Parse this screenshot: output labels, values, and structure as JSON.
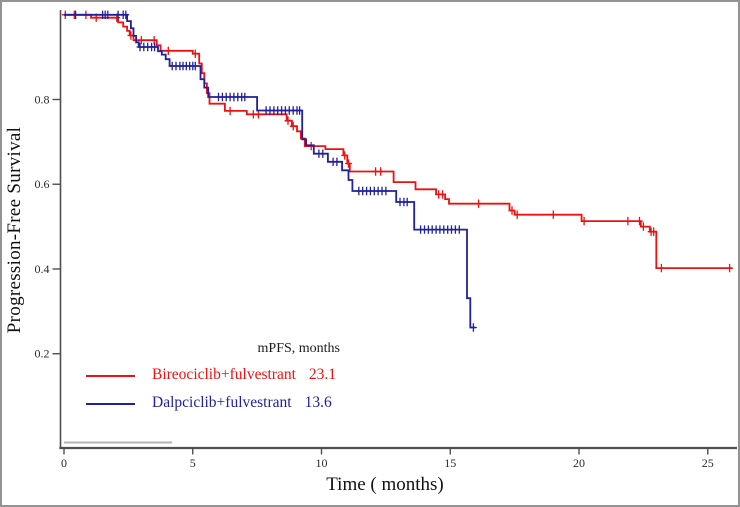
{
  "figure": {
    "background": "#ffffff",
    "frame_color": "#939393",
    "axis_color": "#4f4f4f",
    "tick_text_color": "#2a2a2a"
  },
  "chart_data": {
    "type": "line",
    "subtype": "kaplan-meier-step",
    "title": "",
    "xlabel": "Time ( months)",
    "ylabel": "Progression-Free Survival",
    "xlim": [
      0,
      26.2
    ],
    "ylim": [
      0,
      1.02
    ],
    "x_ticks": [
      0,
      5,
      10,
      15,
      20,
      25
    ],
    "x_tick_labels": [
      "0",
      "5",
      "10",
      "15",
      "20",
      "25"
    ],
    "y_ticks": [
      0.2,
      0.4,
      0.6,
      0.8
    ],
    "y_tick_labels": [
      "0.2",
      "0.4",
      "0.6",
      "0.8"
    ],
    "grid": false,
    "legend_position": "inside-lower-center",
    "baseline_artifact": {
      "x_range_months": [
        0,
        4.2
      ],
      "y_value": 0.012,
      "color": "#b4b4b4"
    },
    "series": [
      {
        "name": "Bireociclib+fulvestrant",
        "median_pfs_months": 23.1,
        "color": "#ED1111",
        "start": [
          0,
          1.0
        ],
        "steps": [
          [
            1.05,
            0.993
          ],
          [
            2.1,
            0.982
          ],
          [
            2.3,
            0.972
          ],
          [
            2.45,
            0.962
          ],
          [
            2.55,
            0.951
          ],
          [
            2.7,
            0.94
          ],
          [
            3.6,
            0.928
          ],
          [
            3.75,
            0.915
          ],
          [
            5.0,
            0.908
          ],
          [
            5.25,
            0.885
          ],
          [
            5.35,
            0.862
          ],
          [
            5.45,
            0.838
          ],
          [
            5.55,
            0.815
          ],
          [
            5.65,
            0.79
          ],
          [
            6.25,
            0.773
          ],
          [
            7.1,
            0.765
          ],
          [
            8.65,
            0.75
          ],
          [
            8.85,
            0.737
          ],
          [
            9.05,
            0.725
          ],
          [
            9.2,
            0.708
          ],
          [
            9.35,
            0.69
          ],
          [
            10.15,
            0.683
          ],
          [
            10.85,
            0.668
          ],
          [
            11.0,
            0.649
          ],
          [
            11.1,
            0.63
          ],
          [
            12.8,
            0.605
          ],
          [
            13.65,
            0.588
          ],
          [
            14.45,
            0.576
          ],
          [
            14.8,
            0.565
          ],
          [
            14.95,
            0.554
          ],
          [
            17.3,
            0.538
          ],
          [
            17.5,
            0.528
          ],
          [
            20.1,
            0.513
          ],
          [
            22.4,
            0.5
          ],
          [
            22.75,
            0.488
          ],
          [
            23.0,
            0.402
          ]
        ],
        "end_time": 25.95,
        "censor_times": [
          0.05,
          0.4,
          0.85,
          1.25,
          2.05,
          2.6,
          3.0,
          3.5,
          4.05,
          5.1,
          6.45,
          7.35,
          7.55,
          8.7,
          8.9,
          9.6,
          10.9,
          11.05,
          12.1,
          12.3,
          14.55,
          14.7,
          16.1,
          17.4,
          17.6,
          19.0,
          20.2,
          21.9,
          22.35,
          22.5,
          22.8,
          22.9,
          23.2,
          25.85
        ]
      },
      {
        "name": "Dalpciclib+fulvestrant",
        "median_pfs_months": 13.6,
        "color": "#21219B",
        "start": [
          0,
          1.0
        ],
        "steps": [
          [
            2.45,
            0.985
          ],
          [
            2.6,
            0.968
          ],
          [
            2.7,
            0.95
          ],
          [
            2.8,
            0.935
          ],
          [
            2.9,
            0.924
          ],
          [
            3.65,
            0.914
          ],
          [
            3.8,
            0.906
          ],
          [
            3.95,
            0.895
          ],
          [
            4.1,
            0.879
          ],
          [
            5.3,
            0.848
          ],
          [
            5.45,
            0.828
          ],
          [
            5.6,
            0.806
          ],
          [
            7.5,
            0.774
          ],
          [
            9.25,
            0.706
          ],
          [
            9.4,
            0.692
          ],
          [
            9.7,
            0.672
          ],
          [
            10.25,
            0.653
          ],
          [
            10.8,
            0.633
          ],
          [
            11.05,
            0.61
          ],
          [
            11.2,
            0.584
          ],
          [
            12.9,
            0.558
          ],
          [
            13.6,
            0.493
          ],
          [
            15.65,
            0.331
          ],
          [
            15.78,
            0.262
          ]
        ],
        "end_time": 15.98,
        "censor_times": [
          0.45,
          1.5,
          1.6,
          1.7,
          2.1,
          2.3,
          2.4,
          2.95,
          3.1,
          3.25,
          3.4,
          3.52,
          4.2,
          4.35,
          4.5,
          4.62,
          4.75,
          4.88,
          5.0,
          5.1,
          6.0,
          6.15,
          6.3,
          6.45,
          6.6,
          6.75,
          6.9,
          7.02,
          7.85,
          8.0,
          8.15,
          8.3,
          8.45,
          8.6,
          8.75,
          8.9,
          9.05,
          9.15,
          9.9,
          10.05,
          10.45,
          10.6,
          11.45,
          11.6,
          11.75,
          11.9,
          12.05,
          12.2,
          12.35,
          12.5,
          13.05,
          13.2,
          13.33,
          13.85,
          14.0,
          14.15,
          14.3,
          14.45,
          14.6,
          14.75,
          14.9,
          15.05,
          15.2,
          15.35,
          15.9
        ]
      }
    ]
  },
  "legend": {
    "header": "mPFS, months",
    "rows": [
      {
        "label": "Bireociclib+fulvestrant",
        "median": "23.1",
        "color": "#ED1111"
      },
      {
        "label": "Dalpciclib+fulvestrant",
        "median": "13.6",
        "color": "#21219B"
      }
    ]
  }
}
